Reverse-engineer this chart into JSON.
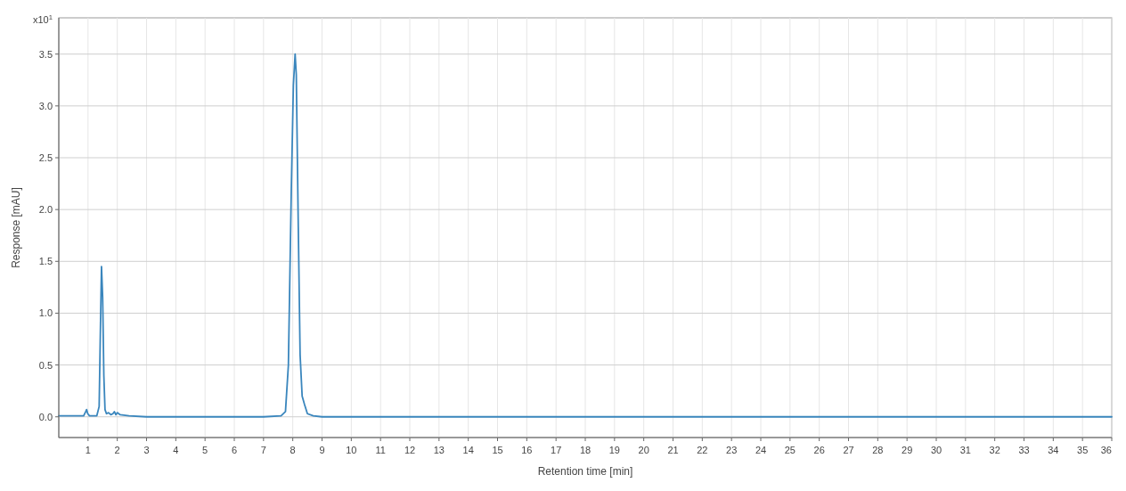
{
  "chart_data": {
    "type": "line",
    "xlabel": "Retention time [min]",
    "ylabel": "Response [mAU]",
    "annotations": [
      "x10$^{1}$"
    ],
    "xlim": [
      0,
      36
    ],
    "xticks": [
      1,
      2,
      3,
      4,
      5,
      6,
      7,
      8,
      9,
      10,
      11,
      12,
      13,
      14,
      15,
      16,
      17,
      18,
      19,
      20,
      21,
      22,
      23,
      24,
      25,
      26,
      27,
      28,
      29,
      30,
      31,
      32,
      33,
      34,
      35,
      36
    ],
    "ylim": [
      -0.2,
      3.85
    ],
    "yticks": [
      {
        "value": 0,
        "label": "0.0"
      },
      {
        "value": 0.5,
        "label": "0.5"
      },
      {
        "value": 1,
        "label": "1.0"
      },
      {
        "value": 1.5,
        "label": "1.5"
      },
      {
        "value": 2,
        "label": "2.0"
      },
      {
        "value": 2.5,
        "label": "2.5"
      },
      {
        "value": 3,
        "label": "3.0"
      },
      {
        "value": 3.5,
        "label": "3.5"
      }
    ],
    "grid": true,
    "marker": "none",
    "line_style": "solid",
    "series": [
      {
        "color": "#3a86bd",
        "x": [
          0,
          0.85,
          0.92,
          0.95,
          0.99,
          1.05,
          1.3,
          1.38,
          1.42,
          1.46,
          1.5,
          1.54,
          1.58,
          1.63,
          1.7,
          1.78,
          1.85,
          1.9,
          1.95,
          2.0,
          2.1,
          2.4,
          3,
          5,
          7,
          7.6,
          7.75,
          7.85,
          7.95,
          8.02,
          8.08,
          8.12,
          8.18,
          8.25,
          8.32,
          8.4,
          8.5,
          8.7,
          9,
          12,
          16,
          20,
          24,
          28,
          32,
          36
        ],
        "values": [
          0.01,
          0.01,
          0.05,
          0.07,
          0.03,
          0.01,
          0.01,
          0.1,
          0.8,
          1.45,
          1.15,
          0.4,
          0.07,
          0.03,
          0.04,
          0.02,
          0.03,
          0.05,
          0.02,
          0.04,
          0.02,
          0.01,
          0.0,
          0.0,
          0.0,
          0.01,
          0.05,
          0.5,
          2.2,
          3.2,
          3.5,
          3.3,
          2.0,
          0.6,
          0.2,
          0.12,
          0.03,
          0.01,
          0.0,
          0.0,
          0.0,
          0.0,
          0.0,
          0.0,
          0.0,
          0.0
        ]
      }
    ]
  }
}
